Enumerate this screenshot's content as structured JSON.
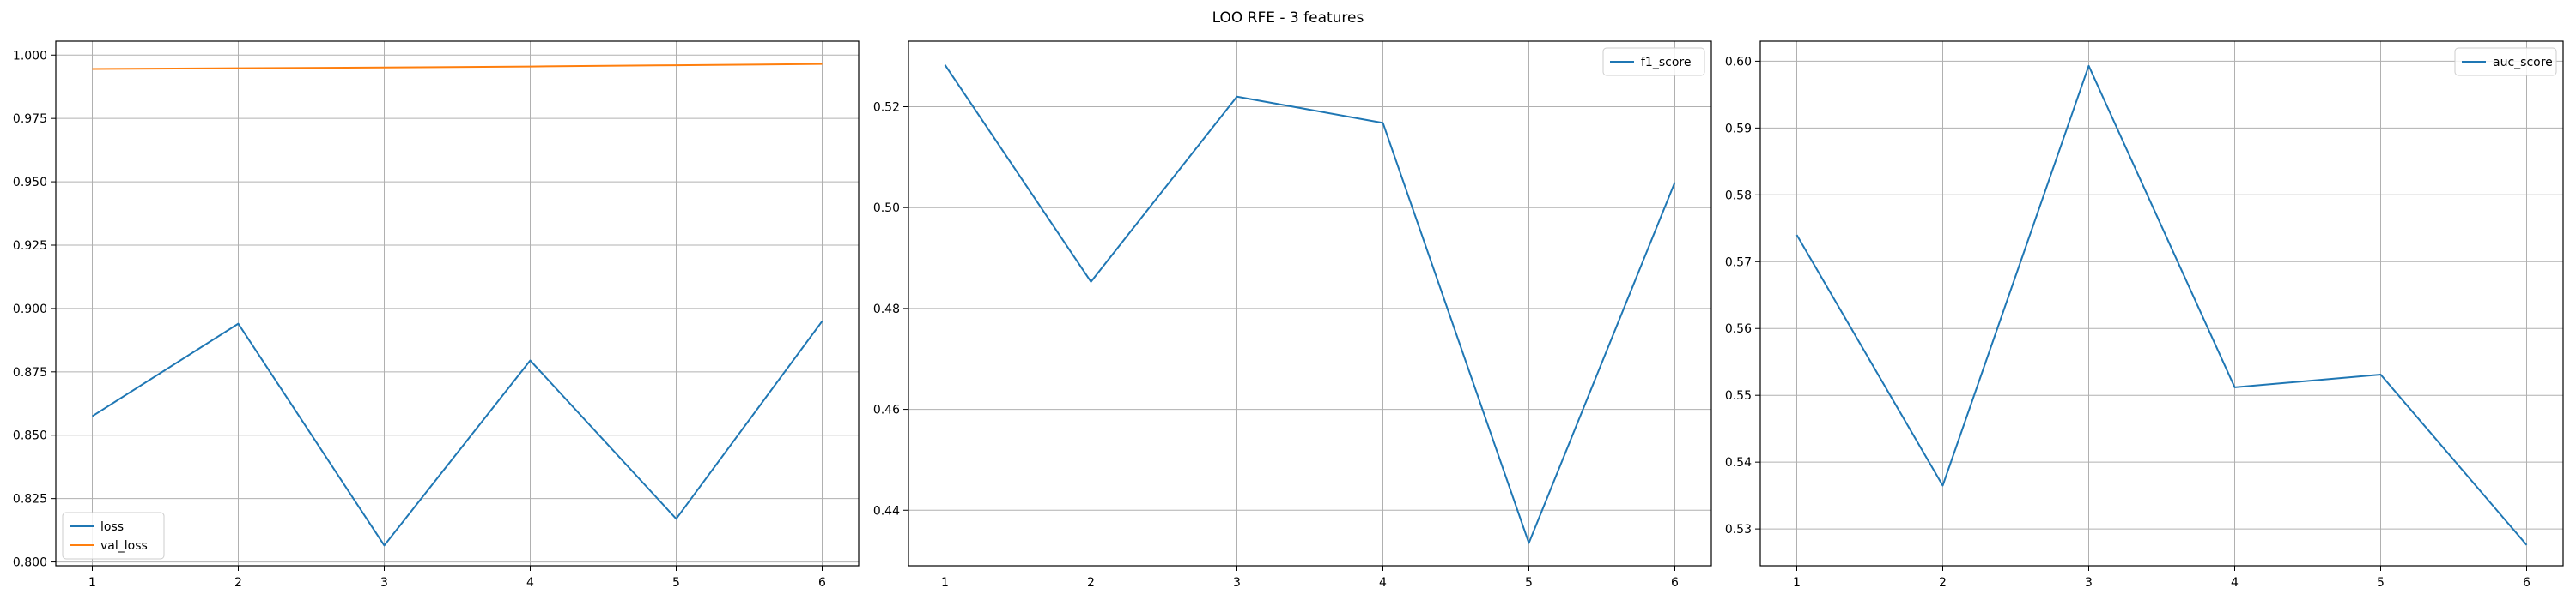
{
  "figure": {
    "suptitle": "LOO RFE - 3 features"
  },
  "chart_data": [
    {
      "type": "line",
      "x": [
        1,
        2,
        3,
        4,
        5,
        6
      ],
      "series": [
        {
          "name": "loss",
          "color": "#1f77b4",
          "values": [
            0.8575,
            0.894,
            0.8065,
            0.8795,
            0.817,
            0.895
          ]
        },
        {
          "name": "val_loss",
          "color": "#ff7f0e",
          "values": [
            0.9945,
            0.9948,
            0.9951,
            0.9955,
            0.996,
            0.9965
          ]
        }
      ],
      "xticks": [
        "1",
        "2",
        "3",
        "4",
        "5",
        "6"
      ],
      "yticks": [
        "0.800",
        "0.825",
        "0.850",
        "0.875",
        "0.900",
        "0.925",
        "0.950",
        "0.975",
        "1.000"
      ],
      "xlim": [
        0.75,
        6.25
      ],
      "ylim": [
        0.7985,
        1.0055
      ],
      "grid": true,
      "legend": "lower-left"
    },
    {
      "type": "line",
      "x": [
        1,
        2,
        3,
        4,
        5,
        6
      ],
      "series": [
        {
          "name": "f1_score",
          "color": "#1f77b4",
          "values": [
            0.5283,
            0.4853,
            0.522,
            0.5168,
            0.4335,
            0.505
          ]
        }
      ],
      "xticks": [
        "1",
        "2",
        "3",
        "4",
        "5",
        "6"
      ],
      "yticks": [
        "0.44",
        "0.46",
        "0.48",
        "0.50",
        "0.52"
      ],
      "xlim": [
        0.75,
        6.25
      ],
      "ylim": [
        0.429,
        0.533
      ],
      "grid": true,
      "legend": "upper-right"
    },
    {
      "type": "line",
      "x": [
        1,
        2,
        3,
        4,
        5,
        6
      ],
      "series": [
        {
          "name": "auc_score",
          "color": "#1f77b4",
          "values": [
            0.574,
            0.5365,
            0.5993,
            0.5512,
            0.5531,
            0.5276
          ]
        }
      ],
      "xticks": [
        "1",
        "2",
        "3",
        "4",
        "5",
        "6"
      ],
      "yticks": [
        "0.53",
        "0.54",
        "0.55",
        "0.56",
        "0.57",
        "0.58",
        "0.59",
        "0.60"
      ],
      "xlim": [
        0.75,
        6.25
      ],
      "ylim": [
        0.5245,
        0.603
      ],
      "grid": true,
      "legend": "upper-right"
    }
  ]
}
